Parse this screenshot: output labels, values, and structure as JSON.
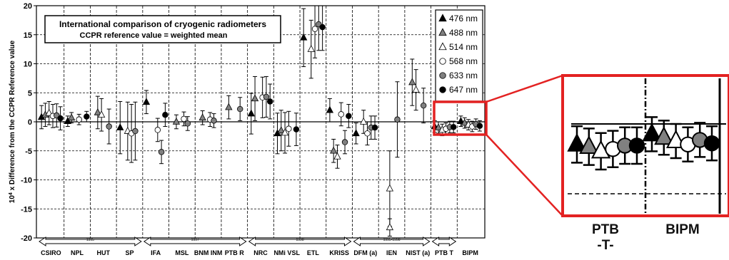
{
  "chart_data": {
    "type": "scatter",
    "title": "International comparison of cryogenic radiometers",
    "subtitle": "CCPR reference value = weighted mean",
    "ylabel": "10⁴ x Difference from the CCPR Reference value",
    "ylabel_parts": {
      "prefix": "10",
      "exponent": "4",
      "rest": " x Difference from the CCPR Reference value"
    },
    "ylim": [
      -20,
      20
    ],
    "yticks": [
      -20,
      -15,
      -10,
      -5,
      0,
      5,
      10,
      15,
      20
    ],
    "ytick_labels": [
      "-20",
      "-15",
      "-10",
      "-5",
      "0",
      "5",
      "10",
      "15",
      "20"
    ],
    "grid": true,
    "legend_position": "top-right",
    "series": [
      {
        "name": "476 nm",
        "marker": "triangle",
        "fill": "#000000"
      },
      {
        "name": "488 nm",
        "marker": "triangle",
        "fill": "#808080"
      },
      {
        "name": "514 nm",
        "marker": "triangle",
        "fill": "#ffffff"
      },
      {
        "name": "568 nm",
        "marker": "circle",
        "fill": "#ffffff"
      },
      {
        "name": "633 nm",
        "marker": "circle",
        "fill": "#808080"
      },
      {
        "name": "647 nm",
        "marker": "circle",
        "fill": "#000000"
      }
    ],
    "labs": [
      {
        "label": "CSIRO",
        "points": [
          {
            "s": 0,
            "y": 0.8,
            "e": 2.0
          },
          {
            "s": 1,
            "y": 1.2,
            "e": 2.0
          },
          {
            "s": 2,
            "y": 1.5,
            "e": 2.0
          },
          {
            "s": 3,
            "y": 1.0,
            "e": 2.0
          },
          {
            "s": 4,
            "y": 1.1,
            "e": 2.0
          },
          {
            "s": 5,
            "y": 0.6,
            "e": 2.0
          }
        ]
      },
      {
        "label": "NPL",
        "points": [
          {
            "s": 0,
            "y": 0.1,
            "e": 0.9
          },
          {
            "s": 1,
            "y": 0.7,
            "e": 0.9
          },
          {
            "s": 3,
            "y": 0.4,
            "e": 0.9
          },
          {
            "s": 5,
            "y": 0.9,
            "e": 0.9
          }
        ]
      },
      {
        "label": "HUT",
        "points": [
          {
            "s": 1,
            "y": 1.6,
            "e": 2.8
          },
          {
            "s": 2,
            "y": 1.2,
            "e": 2.8
          },
          {
            "s": 4,
            "y": -0.8,
            "e": 3.0
          }
        ]
      },
      {
        "label": "SP",
        "points": [
          {
            "s": 0,
            "y": -1.0,
            "e": 4.5
          },
          {
            "s": 2,
            "y": -1.6,
            "e": 5.0
          },
          {
            "s": 3,
            "y": -2.0,
            "e": 5.0
          },
          {
            "s": 4,
            "y": -1.6,
            "e": 5.0
          }
        ]
      },
      {
        "label": "IFA",
        "points": [
          {
            "s": 0,
            "y": 3.4,
            "e": 2.0
          },
          {
            "s": 3,
            "y": -1.4,
            "e": 2.0
          },
          {
            "s": 4,
            "y": -5.2,
            "e": 2.0
          },
          {
            "s": 5,
            "y": 1.2,
            "e": 2.0
          }
        ]
      },
      {
        "label": "MSL",
        "points": [
          {
            "s": 1,
            "y": 0.0,
            "e": 1.2
          },
          {
            "s": 3,
            "y": 0.5,
            "e": 1.2
          },
          {
            "s": 4,
            "y": -0.3,
            "e": 1.2
          }
        ]
      },
      {
        "label": "BNM INM",
        "points": [
          {
            "s": 1,
            "y": 0.7,
            "e": 1.2
          },
          {
            "s": 3,
            "y": 0.4,
            "e": 1.2
          },
          {
            "s": 4,
            "y": 0.2,
            "e": 1.2
          }
        ]
      },
      {
        "label": "PTB R",
        "points": [
          {
            "s": 1,
            "y": 2.5,
            "e": 2.0
          },
          {
            "s": 4,
            "y": 2.2,
            "e": 2.0
          }
        ]
      },
      {
        "label": "NRC",
        "points": [
          {
            "s": 0,
            "y": 1.4,
            "e": 3.5
          },
          {
            "s": 1,
            "y": 4.0,
            "e": 3.8
          },
          {
            "s": 3,
            "y": 4.2,
            "e": 3.5
          },
          {
            "s": 4,
            "y": 4.3,
            "e": 3.5
          },
          {
            "s": 5,
            "y": 3.5,
            "e": 3.0
          }
        ]
      },
      {
        "label": "NMi VSL",
        "points": [
          {
            "s": 0,
            "y": -2.0,
            "e": 3.5
          },
          {
            "s": 1,
            "y": -1.5,
            "e": 3.5
          },
          {
            "s": 2,
            "y": -1.9,
            "e": 3.5
          },
          {
            "s": 3,
            "y": -1.2,
            "e": 3.0
          },
          {
            "s": 5,
            "y": -1.3,
            "e": 2.8
          }
        ]
      },
      {
        "label": "ETL",
        "points": [
          {
            "s": 0,
            "y": 14.5,
            "e": 5.0
          },
          {
            "s": 2,
            "y": 12.5,
            "e": 5.0
          },
          {
            "s": 3,
            "y": 16.0,
            "e": 5.0
          },
          {
            "s": 4,
            "y": 16.8,
            "e": 4.5
          },
          {
            "s": 5,
            "y": 16.3,
            "e": 4.0
          }
        ]
      },
      {
        "label": "KRISS",
        "points": [
          {
            "s": 0,
            "y": 2.0,
            "e": 2.0
          },
          {
            "s": 1,
            "y": -5.0,
            "e": 2.0
          },
          {
            "s": 2,
            "y": -6.0,
            "e": 2.0
          },
          {
            "s": 3,
            "y": 1.3,
            "e": 2.0
          },
          {
            "s": 4,
            "y": -3.5,
            "e": 2.0
          },
          {
            "s": 5,
            "y": 1.0,
            "e": 2.0
          }
        ]
      },
      {
        "label": "DFM (a)",
        "points": [
          {
            "s": 0,
            "y": -2.0,
            "e": 1.8
          },
          {
            "s": 2,
            "y": 0.0,
            "e": 2.0
          },
          {
            "s": 3,
            "y": -2.0,
            "e": 2.0
          },
          {
            "s": 4,
            "y": -1.0,
            "e": 2.0
          },
          {
            "s": 5,
            "y": -1.0,
            "e": 2.0
          }
        ]
      },
      {
        "label": "IEN",
        "points": [
          {
            "s": 2,
            "y": -11.5,
            "e": 6.5
          },
          {
            "s": 2,
            "y": -18.2,
            "e": 1.5
          },
          {
            "s": 4,
            "y": 0.4,
            "e": 6.5
          }
        ]
      },
      {
        "label": "NIST (a)",
        "points": [
          {
            "s": 1,
            "y": 6.8,
            "e": 4.0
          },
          {
            "s": 2,
            "y": 5.5,
            "e": 3.5
          },
          {
            "s": 4,
            "y": 2.8,
            "e": 3.0
          }
        ]
      },
      {
        "label": "PTB T",
        "points": [
          {
            "s": 0,
            "y": -0.8,
            "e": 1.0
          },
          {
            "s": 1,
            "y": -1.0,
            "e": 1.0
          },
          {
            "s": 2,
            "y": -1.4,
            "e": 1.0
          },
          {
            "s": 3,
            "y": -1.2,
            "e": 1.0
          },
          {
            "s": 4,
            "y": -0.9,
            "e": 1.0
          },
          {
            "s": 5,
            "y": -0.9,
            "e": 1.0
          }
        ]
      },
      {
        "label": "BIPM",
        "points": [
          {
            "s": 0,
            "y": 0.1,
            "e": 0.9
          },
          {
            "s": 1,
            "y": -0.2,
            "e": 0.9
          },
          {
            "s": 2,
            "y": -0.5,
            "e": 0.9
          },
          {
            "s": 3,
            "y": -0.8,
            "e": 0.9
          },
          {
            "s": 4,
            "y": -0.4,
            "e": 0.9
          },
          {
            "s": 5,
            "y": -0.7,
            "e": 0.9
          }
        ]
      }
    ],
    "period_arrows": [
      {
        "label": "1995",
        "from_lab": 0,
        "to_lab": 3
      },
      {
        "label": "1997",
        "from_lab": 4,
        "to_lab": 7
      },
      {
        "label": "1998",
        "from_lab": 8,
        "to_lab": 11
      },
      {
        "label": "1995-1998",
        "from_lab": 12,
        "to_lab": 14
      },
      {
        "label": "",
        "from_lab": 15,
        "to_lab": 15
      }
    ]
  },
  "zoom": {
    "labels": [
      {
        "line1": "PTB",
        "line2": "-T-"
      },
      {
        "line1": "BIPM",
        "line2": ""
      }
    ],
    "highlight_color": "#e32222"
  }
}
